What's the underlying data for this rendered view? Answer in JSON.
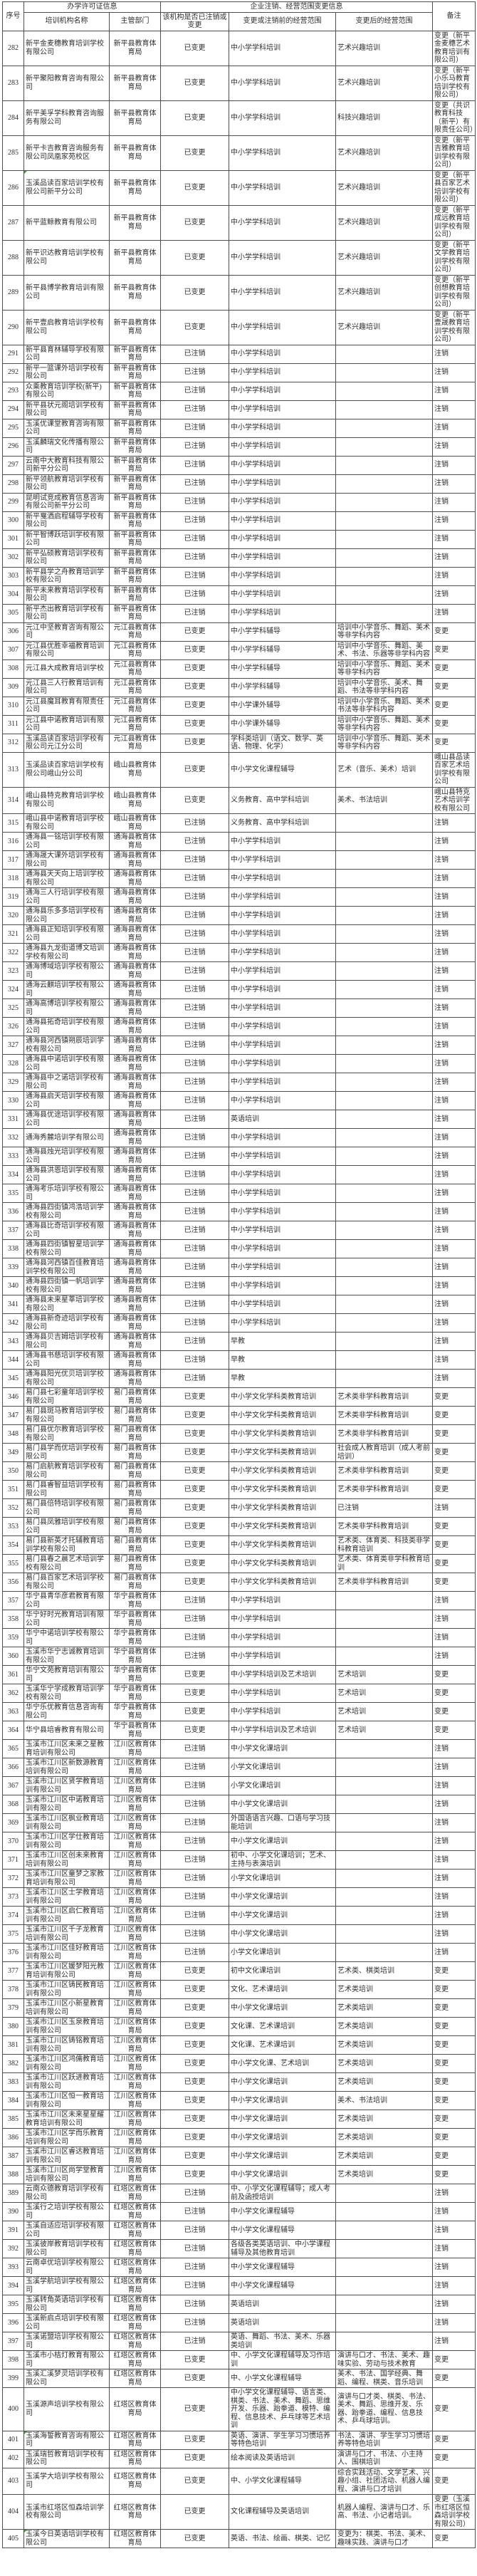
{
  "table": {
    "header": {
      "col_no": "序号",
      "group_license": "办学许可证信息",
      "group_change": "企业注销、经营范围变更信息",
      "col_name": "培训机构名称",
      "col_dept": "主管部门",
      "col_status": "该机构是否已注销或变更",
      "col_scope_before": "变更或注销前的经营范围",
      "col_scope_after": "变更后的经营范围",
      "col_remark": "备注"
    },
    "flagged_rows": [
      286,
      401,
      405
    ],
    "rows": [
      [
        282,
        "新平金麦穗教育培训学校有限公司",
        "新平县教育体育局",
        "已变更",
        "中小学学科培训",
        "艺术兴趣培训",
        "变更（新平金麦穗艺术教育培训有限公司）"
      ],
      [
        283,
        "新平聚阳教育咨询有限公司",
        "新平县教育体育局",
        "已变更",
        "中小学学科培训",
        "艺术兴趣培训",
        "变更（新平小乐马教育培训学校有限公司）"
      ],
      [
        284,
        "新平美孚学科教育咨询服务有限公司",
        "新平县教育体育局",
        "已变更",
        "中小学学科培训",
        "科技兴趣培训",
        "变更（共识教育科技（新平）有限责任公司）"
      ],
      [
        285,
        "新平卡吉教育咨询服务有限公司凤凰家苑校区",
        "新平县教育体育局",
        "已变更",
        "中小学学科培训",
        "艺术兴趣培训",
        "变更（新平吉雅教育培训学校有限公司）"
      ],
      [
        286,
        "玉溪品读百家培训学校有限公司新平分公司",
        "新平县教育体育局",
        "已变更",
        "中小学学科培训",
        "艺术兴趣培训",
        "变更（新平县百家艺术培训学校有限公司）"
      ],
      [
        287,
        "新平蓝鲸教育有限公司",
        "新平县教育体育局",
        "已变更",
        "中小学学科培训",
        "艺术兴趣培训",
        "变更（新平成远教育培训学校有限公司）"
      ],
      [
        288,
        "新平识达教育培训学校有限公司",
        "新平县教育体育局",
        "已变更",
        "中小学学科培训",
        "艺术兴趣培训",
        "变更（新平文学教育培训学校有限公司）"
      ],
      [
        289,
        "新平县博学教育培训有限公司",
        "新平县教育体育局",
        "已变更",
        "中小学学科培训",
        "艺术兴趣培训",
        "变更（新平创想教育培训学校有限公司）"
      ],
      [
        290,
        "新平壹启教育培训学校有限公司",
        "新平县教育体育局",
        "已变更",
        "中小学学科培训",
        "艺术兴趣培训",
        "变更（新平壹晟教育培训学校有限公司）"
      ],
      [
        291,
        "新平县育林辅导学校有限公司",
        "新平县教育体育局",
        "已注销",
        "中小学学科培训",
        "",
        "注销"
      ],
      [
        292,
        "新平一篮课外培训学校有限公司",
        "新平县教育体育局",
        "已注销",
        "中小学学科培训",
        "",
        "注销"
      ],
      [
        293,
        "众乘教育培训学校(新平)有限公司",
        "新平县教育体育局",
        "已注销",
        "中小学学科培训",
        "",
        "注销"
      ],
      [
        294,
        "新平县状元阁培训学校有限公司",
        "新平县教育体育局",
        "已注销",
        "中小学学科培训",
        "",
        "注销"
      ],
      [
        295,
        "玉溪优课堂教育咨询有限公司",
        "新平县教育体育局",
        "已注销",
        "中小学学科培训",
        "",
        "注销"
      ],
      [
        296,
        "玉溪麟瑞文化传播有限公司",
        "新平县教育体育局",
        "已注销",
        "中小学学科培训",
        "",
        "注销"
      ],
      [
        297,
        "云南中大教育科技有限公司新平分公司",
        "新平县教育体育局",
        "已注销",
        "中小学学科培训",
        "",
        "注销"
      ],
      [
        298,
        "新平领航教育培训学校有限公司",
        "新平县教育体育局",
        "已注销",
        "中小学学科培训",
        "",
        "注销"
      ],
      [
        299,
        "昆明试竞成教育信息咨询有限公司新平分公司",
        "新平县教育体育局",
        "已注销",
        "中小学学科培训",
        "",
        "注销"
      ],
      [
        300,
        "新平戛洒启程辅导学校有限公司",
        "新平县教育体育局",
        "已注销",
        "中小学学科培训",
        "",
        "注销"
      ],
      [
        301,
        "新平智博跃培训学校有限公司",
        "新平县教育体育局",
        "已注销",
        "中小学学科培训",
        "",
        "注销"
      ],
      [
        302,
        "新平弘硕教育培训学校有限公司",
        "新平县教育体育局",
        "已注销",
        "中小学学科培训",
        "",
        "注销"
      ],
      [
        303,
        "新平县学之舟教育培训学校有限公司",
        "新平县教育体育局",
        "已注销",
        "中小学学科培训",
        "",
        "注销"
      ],
      [
        304,
        "新平未来教育培训学校有限公司",
        "新平县教育体育局",
        "已注销",
        "中小学学科培训",
        "",
        "注销"
      ],
      [
        305,
        "新平杰出教育培训学校有限公司",
        "新平县教育体育局",
        "已注销",
        "中小学学科培训",
        "",
        "注销"
      ],
      [
        306,
        "元江中坚教育咨询有限公司",
        "元江县教育体育局",
        "已变更",
        "中小学学科辅导",
        "培训中小学音乐、舞蹈、美术等非学科内容",
        "变更"
      ],
      [
        307,
        "元江县优胜幸福教育培训有限公司",
        "元江县教育体育局",
        "已变更",
        "中小学学科辅导",
        "培训中小学音乐、舞蹈、美术、书法、乐器等非学科内容",
        "变更"
      ],
      [
        308,
        "元江县大成教育培训学校",
        "元江县教育体育局",
        "已变更",
        "中小学学科辅导",
        "培训中小学音乐、舞蹈、美术等非学科内容",
        "变更"
      ],
      [
        309,
        "元江县三人行教育培训有限公司",
        "元江县教育体育局",
        "已变更",
        "中小学学科辅导",
        "培训中小学音乐、美术、舞蹈、书法等非学科内容",
        "变更"
      ],
      [
        310,
        "元江县魔耳教育有限责任公司",
        "元江县教育体育局",
        "已变更",
        "中小学课外辅导",
        "培训中小学音乐、舞蹈、美术书法等非学科内容",
        "变更"
      ],
      [
        311,
        "元江县中诺教育培训有限公司",
        "元江县教育体育局",
        "已变更",
        "中小学课外辅导",
        "培训中小学音乐、舞蹈、美术等非学科内容",
        "变更"
      ],
      [
        312,
        "玉溪品读百家培训学校有限公司元江分公司",
        "元江县教育体育局",
        "已变更",
        "学科类培训（语文、数学、英语、物理、化学）",
        "培训中小学音乐、舞蹈、美术等非学科内容",
        "变更"
      ],
      [
        313,
        "玉溪品读百家培训学校有限公司峨山分公司",
        "峨山县教育体育局",
        "已变更",
        "中小学文化课程辅导",
        "艺术（音乐、美术）培训",
        "峨山县品读百家艺术培训学校有限公司"
      ],
      [
        314,
        "峨山县特克教育培训学校有限公司",
        "峨山县教育体育局",
        "已变更",
        "义务教育、高中学科培训",
        "美术、书法培训",
        "峨山县特克艺术培训学校有限公司"
      ],
      [
        315,
        "峨山县中诺教育培训学校有限公司",
        "峨山县教育体育局",
        "已注销",
        "义务教育、高中学科培训",
        "",
        "注销"
      ],
      [
        316,
        "通海县一铭培训学校有限公司",
        "通海县教育体育局",
        "已注销",
        "中小学学科培训",
        "",
        "注销"
      ],
      [
        317,
        "通海晟大课外培训学校有限公司",
        "通海县教育体育局",
        "已注销",
        "中小学学科培训",
        "",
        "注销"
      ],
      [
        318,
        "通海县天天向上培训学校有限公司",
        "通海县教育体育局",
        "已注销",
        "中小学学科培训",
        "",
        "注销"
      ],
      [
        319,
        "通海三人行培训学校有限公司",
        "通海县教育体育局",
        "已注销",
        "中小学学科培训",
        "",
        "注销"
      ],
      [
        320,
        "通海县乐多多培训学校有限公司",
        "通海县教育体育局",
        "已注销",
        "中小学学科培训",
        "",
        "注销"
      ],
      [
        321,
        "通海县正知培训学校有限公司",
        "通海县教育体育局",
        "已注销",
        "中小学学科培训",
        "",
        "注销"
      ],
      [
        322,
        "通海县九龙街道博文培训学校有限公司",
        "通海县教育体育局",
        "已注销",
        "中小学学科培训",
        "",
        "注销"
      ],
      [
        323,
        "通海博域培训学校有限公司",
        "通海县教育体育局",
        "已注销",
        "中小学学科培训",
        "",
        "注销"
      ],
      [
        324,
        "通海云麒培训学校有限公司",
        "通海县教育体育局",
        "已注销",
        "中小学学科培训",
        "",
        "注销"
      ],
      [
        325,
        "通海高博培训学校有限公司",
        "通海县教育体育局",
        "已注销",
        "中小学学科培训",
        "",
        "注销"
      ],
      [
        326,
        "通海县拓奇培训学校有限公司",
        "通海县教育体育局",
        "已注销",
        "中小学学科培训",
        "",
        "注销"
      ],
      [
        327,
        "通海县河西镇朔辰培训学校有限公司",
        "通海县教育体育局",
        "已注销",
        "中小学学科培训",
        "",
        "注销"
      ],
      [
        328,
        "通海县中诺培训学校有限公司",
        "通海县教育体育局",
        "已注销",
        "中小学学科培训",
        "",
        "注销"
      ],
      [
        329,
        "通海县中之诺培训学校有限公司",
        "通海县教育体育局",
        "已注销",
        "中小学学科培训",
        "",
        "注销"
      ],
      [
        330,
        "通海县启天培训学校有限公司",
        "通海县教育体育局",
        "已注销",
        "中小学学科培训",
        "",
        "注销"
      ],
      [
        331,
        "通海县优途培训学校有限公司",
        "通海县教育体育局",
        "已注销",
        "英语培训",
        "",
        "注销"
      ],
      [
        332,
        "通海秀麓培训学有限公司",
        "通海县教育体育局",
        "已注销",
        "中小学学科培训",
        "",
        "注销"
      ],
      [
        333,
        "通海县烛光培训学校有限公司",
        "通海县教育体育局",
        "已注销",
        "中小学学科培训",
        "",
        "注销"
      ],
      [
        334,
        "通海县洪恩培训学校有限公司",
        "通海县教育体育局",
        "已注销",
        "中小学学科培训",
        "",
        "注销"
      ],
      [
        335,
        "通海考乐培训学校有限公司",
        "通海县教育体育局",
        "已注销",
        "中小学学科培训",
        "",
        "注销"
      ],
      [
        336,
        "通海县四街镇鸿浩培训学校有限公司",
        "通海县教育体育局",
        "已注销",
        "中小学学科培训",
        "",
        "注销"
      ],
      [
        337,
        "通海县比奇培训学校有限公司",
        "通海县教育体育局",
        "已注销",
        "中小学学科培训",
        "",
        "注销"
      ],
      [
        338,
        "通海县四街镇智星培训学校有限公司",
        "通海县教育体育局",
        "已注销",
        "中小学学科培训",
        "",
        "注销"
      ],
      [
        339,
        "通海县河西镇百佳教育培训学校有限公司",
        "通海县教育体育局",
        "已注销",
        "中小学学科培训",
        "",
        "注销"
      ],
      [
        340,
        "通海县四街镇一帆培训学校有限公司",
        "通海县教育体育局",
        "已注销",
        "中小学学科培训",
        "",
        "注销"
      ],
      [
        341,
        "通海县未来星莘培训学校有限公司",
        "通海县教育体育局",
        "已注销",
        "中小学学科培训",
        "",
        "注销"
      ],
      [
        342,
        "通海县新奇迹培训学校有限公司",
        "通海县教育体育局",
        "已注销",
        "中小学学科培训",
        "",
        "注销"
      ],
      [
        343,
        "通海县贝吉姆培训学校有限公司",
        "通海县教育体育局",
        "已注销",
        "早教",
        "",
        "注销"
      ],
      [
        344,
        "通海县书慈培训学校有限公司",
        "通海县教育体育局",
        "已注销",
        "早教",
        "",
        "注销"
      ],
      [
        345,
        "通海县阳光优贝培训学校有限公司",
        "通海县教育体育局",
        "已注销",
        "早教",
        "",
        "注销"
      ],
      [
        346,
        "易门县七彩童年培训学校有限公司",
        "易门县教育体育局",
        "已变更",
        "中小学文化学科类教育培训",
        "艺术类非学科教育培训",
        "变更"
      ],
      [
        347,
        "易门县斑马教育培训学校有限公司",
        "易门县教育体育局",
        "已变更",
        "中小学文化学科类教育培训",
        "艺术类非学科教育培训",
        "变更"
      ],
      [
        348,
        "易门县优尔教育培训学校有限公司",
        "易门县教育体育局",
        "已变更",
        "中小学文化学科类教育培训",
        "艺术类非学科教育培训",
        "变更"
      ],
      [
        349,
        "易门县学而优培训学校有限公司",
        "易门县教育体育局",
        "已变更",
        "中小学文化学科类教育培训",
        "社会成人教育培训（成人考前培训）",
        "变更"
      ],
      [
        350,
        "易门启航教育培训学校有限公司",
        "易门县教育体育局",
        "已变更",
        "中小学文化学科类教育培训",
        "艺术类非学科教育培训",
        "变更"
      ],
      [
        351,
        "易门县睿智益培训学校有限公司",
        "易门县教育体育局",
        "已变更",
        "中小学文化学科类教育培训",
        "艺术类非学科教育培训",
        "变更"
      ],
      [
        352,
        "易门县倍特培训学校有限公司",
        "易门县教育体育局",
        "已变更",
        "中小学文化学科类教育培训",
        "已注销",
        "注销"
      ],
      [
        353,
        "易门县凤雅培训学校有限公司",
        "易门县教育体育局",
        "已变更",
        "中小学文化学科类教育培训",
        "艺术类非学科教育培训",
        "变更"
      ],
      [
        354,
        "易门县新英才托辅教育培训学校有限公司",
        "易门县教育体育局",
        "已变更",
        "中小学文化学科类教育培训",
        "艺术类、体育类、科技类非学科教育培训",
        "变更"
      ],
      [
        355,
        "易门县春之晨艺术培训学校有限公司",
        "易门县教育体育局",
        "已变更",
        "中小学文化学科类教育培训",
        "艺术类、体育类非学科教育培训",
        "变更"
      ],
      [
        356,
        "易门县百家艺术培训学校有限公司",
        "易门县教育体育局",
        "已变更",
        "中小学文化学科类教育培训",
        "艺术类非学科教育培训",
        "变更"
      ],
      [
        357,
        "华宁县青华彦君教育有限公司",
        "华宁县教育体育局",
        "已注销",
        "中小学学科培训",
        "",
        "注销"
      ],
      [
        358,
        "华宁好时光教育培训有限公司",
        "华宁县教育体育局",
        "已注销",
        "中小学学科培训",
        "",
        "注销"
      ],
      [
        359,
        "华宁中诺培训学校有限公司",
        "华宁县教育体育局",
        "已注销",
        "中小学学科培训",
        "",
        "注销"
      ],
      [
        360,
        "玉溪市华宁志诚教育培训有限公司",
        "华宁县教育体育局",
        "已注销",
        "中小学学科培训",
        "",
        "注销"
      ],
      [
        361,
        "华宁文苑教育培训有限公司",
        "华宁县教育体育局",
        "已变更",
        "中小学学科培训及艺术培训",
        "艺术培训",
        "变更"
      ],
      [
        362,
        "玉溪华宁学成教育培训学校有限公司",
        "华宁县教育体育局",
        "已变更",
        "中小学学科培训",
        "艺术培训",
        "变更"
      ],
      [
        363,
        "华宁乐优教育信息咨询有限公司",
        "华宁县教育体育局",
        "已变更",
        "中小学学科培训",
        "艺术培训",
        "变更"
      ],
      [
        364,
        "华宁县培睿教育有限公司",
        "华宁县教育体育局",
        "已变更",
        "中小学学科培训及艺术培训",
        "艺术培训",
        "变更"
      ],
      [
        365,
        "玉溪市江川区未来之星教育培训有限公司",
        "江川区教育体育局",
        "已注销",
        "中小学文化课培训",
        "",
        "注销"
      ],
      [
        366,
        "玉溪市江川区新数源教育培训有限公司",
        "江川区教育体育局",
        "已注销",
        "小学文化课培训",
        "",
        "注销"
      ],
      [
        367,
        "玉溪市江川区贤学教育培训有限公司",
        "江川区教育体育局",
        "已注销",
        "小学文化课培训",
        "",
        "注销"
      ],
      [
        368,
        "玉溪市江川区中诺教育培训有限公司",
        "江川区教育体育局",
        "已注销",
        "中小学文化课培训",
        "",
        "注销"
      ],
      [
        369,
        "玉溪市江川区枫业教育培训有限公司",
        "江川区教育体育局",
        "已注销",
        "外国语语言兴趣、口语与学习技能培训",
        "",
        "注销"
      ],
      [
        370,
        "玉溪市江川区学仕教育培训有限公司",
        "江川区教育体育局",
        "已注销",
        "中小学文化课培训",
        "",
        "注销"
      ],
      [
        371,
        "玉溪市江川区创未来教育培训有限公司",
        "江川区教育体育局",
        "已注销",
        "初中、小学文化课培训；艺术、主持与表演培训",
        "",
        "注销"
      ],
      [
        372,
        "玉溪市江川区童梦之家教育培训有限公司",
        "江川区教育体育局",
        "已注销",
        "小学文化课培训",
        "",
        "注销"
      ],
      [
        373,
        "玉溪市江川区士学教育培训有限公司",
        "江川区教育体育局",
        "已注销",
        "中小学文化课培训",
        "",
        "注销"
      ],
      [
        374,
        "玉溪市江川区启仁教育培训有限公司",
        "江川区教育体育局",
        "已注销",
        "中小学文化课培训",
        "",
        "注销"
      ],
      [
        375,
        "玉溪市江川区千子龙教育培训有限公司",
        "江川区教育体育局",
        "已注销",
        "中小学文化课培训",
        "",
        "注销"
      ],
      [
        376,
        "玉溪市江川区佳好教育培训有限公司",
        "江川区教育体育局",
        "已注销",
        "小学文化课培训",
        "",
        "注销"
      ],
      [
        377,
        "玉溪市江川区媛梦阳光教育培训有限公司",
        "江川区教育体育局",
        "已变更",
        "初中文化课培训",
        "艺术类、棋类培训",
        "变更"
      ],
      [
        378,
        "玉溪市江川区铸民教育培训有限公司",
        "江川区教育体育局",
        "已变更",
        "文化、艺术课培训",
        "艺术类培训",
        "变更"
      ],
      [
        379,
        "玉溪市江川区小新星教育培训有限公司",
        "江川区教育体育局",
        "已变更",
        "中小学文化课培训",
        "艺术类培训",
        "变更"
      ],
      [
        380,
        "玉溪市江川区玉泉教育培训有限公司",
        "江川区教育体育局",
        "已变更",
        "文化课、艺术课培训",
        "艺术类培训",
        "变更"
      ],
      [
        381,
        "玉溪市江川区铸铭教育培训有限公司",
        "江川区教育体育局",
        "已变更",
        "文化课、艺术课培训",
        "艺术类培训",
        "变更"
      ],
      [
        382,
        "玉溪市江川区鸿儒教育培训有限公司",
        "江川区教育体育局",
        "已变更",
        "中小学文化课、艺术培训",
        "艺术类培训",
        "变更"
      ],
      [
        383,
        "玉溪市江川区跃进教育培训有限公司",
        "江川区教育体育局",
        "已变更",
        "中小学文化课培训",
        "艺术类培训",
        "变更"
      ],
      [
        384,
        "玉溪市江川区恒一教育培训有限公司",
        "江川区教育体育局",
        "已变更",
        "中小学文化课培训",
        "美术、书法培训",
        "变更"
      ],
      [
        385,
        "玉溪市江川区未来星星耀教育培训有限公司",
        "江川区教育体育局",
        "已变更",
        "中小学文化课培训",
        "艺术类培训",
        "变更"
      ],
      [
        386,
        "玉溪市江川区学而乐教育培训有限公司",
        "江川区教育体育局",
        "已变更",
        "中小学文化课培训",
        "艺术类培训",
        "变更"
      ],
      [
        387,
        "玉溪市江川区睿达教育培训有限公司",
        "江川区教育体育局",
        "已变更",
        "中小学文化课培训",
        "艺术类培训",
        "变更"
      ],
      [
        388,
        "玉溪市江川区尚学堂教育培训有限公司",
        "江川区教育体育局",
        "已变更",
        "中小学文化课培训",
        "艺术类培训",
        "变更"
      ],
      [
        389,
        "云南众德教育培训学校有限公司",
        "红塔区教育体育局",
        "已注销",
        "中、小学文化课程辅导；成人考前及函授培训",
        "",
        "注销"
      ],
      [
        390,
        "玉溪行之培训学校有限公司",
        "红塔区教育体育局",
        "已注销",
        "中小学文化课程辅导",
        "",
        "注销"
      ],
      [
        391,
        "玉溪自适应培训学校有限公司",
        "红塔区教育体育局",
        "已注销",
        "中小学文化课程辅导",
        "",
        "注销"
      ],
      [
        392,
        "玉溪彼岸教育培训学校有限公司",
        "红塔区教育体育局",
        "已注销",
        "各级各类英语培训、中小学课程辅导及其他教育培训",
        "",
        "注销"
      ],
      [
        393,
        "云南卓优培训学校有限公司",
        "红塔区教育体育局",
        "已注销",
        "中小学文化课程辅导",
        "",
        "注销"
      ],
      [
        394,
        "玉溪学航培训学校有限公司",
        "红塔区教育体育局",
        "已注销",
        "中小学文化课程辅导",
        "",
        "注销"
      ],
      [
        395,
        "玉溪转角英语培训学校有限公司",
        "红塔区教育体育局",
        "已注销",
        "英语培训",
        "",
        "注销"
      ],
      [
        396,
        "玉溪新启点培训学校有限公司",
        "红塔区教育体育局",
        "已注销",
        "英语培训",
        "",
        "注销"
      ],
      [
        397,
        "玉溪诺盟培训学校有限公司",
        "红塔区教育体育局",
        "已注销",
        "英语、舞蹈、书法、美术、乐器类培训",
        "",
        "注销"
      ],
      [
        398,
        "玉溪市小桔灯教育有限公司",
        "红塔区教育体育局",
        "已变更",
        "中、小学文化课程辅导及习作培训",
        "演讲与口才、书法、美术、趣味实验、劳动与技术教育",
        "变更"
      ],
      [
        399,
        "玉溪汇溪梦灵培训学校有限公司",
        "红塔区教育体育局",
        "已变更",
        "中、小学文化课程辅导",
        "美术、书法、国学经典、舞蹈、编程、棋类、音乐培训",
        "变更"
      ],
      [
        400,
        "玉溪源声培训学校有限公司",
        "红塔区教育体育局",
        "已变更",
        "中小学文化课程辅导、语言类、棋类、书法、美术、舞蹈、思维开发、乐器、跆拳道、模特、编程、信息技术、乒乓球等艺术培训",
        "演讲与口才类、棋类、书法、美术、舞蹈、思维开发、乐器、跆拳道、编程、信息技术、乒乓球培训。",
        "变更"
      ],
      [
        401,
        "玉溪海誓教育咨询有限公司",
        "红塔区教育体育局",
        "已变更",
        "英语、演讲、学生学习习惯培养等特色培训",
        "书法、演讲、学生学习习惯培养等特色培训",
        "变更"
      ],
      [
        402,
        "玉溪瑞哲教育培训学校有限公司",
        "红塔区教育体育局",
        "已变更",
        "绘本阅读及英语培训",
        "演讲与口才、书法、小主持人、围棋培训",
        "变更"
      ],
      [
        403,
        "玉溪学大培训学校有限公司",
        "红塔区教育体育局",
        "已变更",
        "中、小学文化课程辅导",
        "综合实践活动、文学艺术、兴趣小组、社团活动、机器人编程、演讲与口才培训",
        "变更"
      ],
      [
        404,
        "玉溪市红塔区恒森培训学校有限公司",
        "红塔区教育体育局",
        "已变更",
        "文化课程辅导及英语培训",
        "机器人编程、演讲与口才、乐高、书法、小记者培训。",
        "变更（玉溪市红塔区恒森培训学校有限公司）"
      ],
      [
        405,
        "玉溪今日英语培训学校有限公司",
        "红塔区教育体育局",
        "已变更",
        "英语、书法、绘画、棋类、记忆",
        "变更为：棋类、书法、美术、趣味实践、演讲与口才",
        "变更"
      ]
    ]
  }
}
